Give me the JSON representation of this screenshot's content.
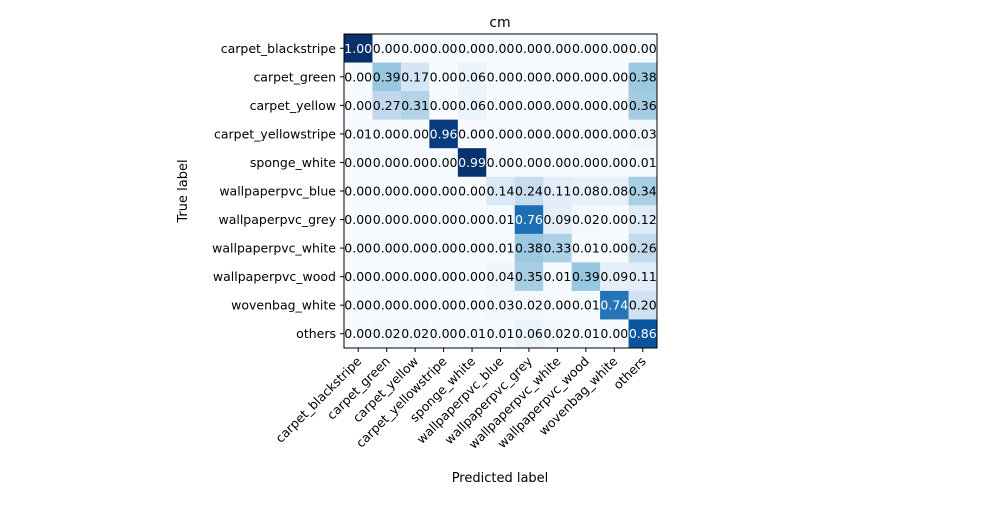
{
  "chart_data": {
    "type": "heatmap",
    "title": "cm",
    "xlabel": "Predicted label",
    "ylabel": "True label",
    "labels": [
      "carpet_blackstripe",
      "carpet_green",
      "carpet_yellow",
      "carpet_yellowstripe",
      "sponge_white",
      "wallpaperpvc_blue",
      "wallpaperpvc_grey",
      "wallpaperpvc_white",
      "wallpaperpvc_wood",
      "wovenbag_white",
      "others"
    ],
    "matrix": [
      [
        1.0,
        0.0,
        0.0,
        0.0,
        0.0,
        0.0,
        0.0,
        0.0,
        0.0,
        0.0,
        0.0
      ],
      [
        0.0,
        0.39,
        0.17,
        0.0,
        0.06,
        0.0,
        0.0,
        0.0,
        0.0,
        0.0,
        0.38
      ],
      [
        0.0,
        0.27,
        0.31,
        0.0,
        0.06,
        0.0,
        0.0,
        0.0,
        0.0,
        0.0,
        0.36
      ],
      [
        0.01,
        0.0,
        0.0,
        0.96,
        0.0,
        0.0,
        0.0,
        0.0,
        0.0,
        0.0,
        0.03
      ],
      [
        0.0,
        0.0,
        0.0,
        0.0,
        0.99,
        0.0,
        0.0,
        0.0,
        0.0,
        0.0,
        0.01
      ],
      [
        0.0,
        0.0,
        0.0,
        0.0,
        0.0,
        0.14,
        0.24,
        0.11,
        0.08,
        0.08,
        0.34
      ],
      [
        0.0,
        0.0,
        0.0,
        0.0,
        0.0,
        0.01,
        0.76,
        0.09,
        0.02,
        0.0,
        0.12
      ],
      [
        0.0,
        0.0,
        0.0,
        0.0,
        0.0,
        0.01,
        0.38,
        0.33,
        0.01,
        0.0,
        0.26
      ],
      [
        0.0,
        0.0,
        0.0,
        0.0,
        0.0,
        0.04,
        0.35,
        0.01,
        0.39,
        0.09,
        0.11
      ],
      [
        0.0,
        0.0,
        0.0,
        0.0,
        0.0,
        0.03,
        0.02,
        0.0,
        0.01,
        0.74,
        0.2
      ],
      [
        0.0,
        0.02,
        0.02,
        0.0,
        0.01,
        0.01,
        0.06,
        0.02,
        0.01,
        0.0,
        0.86
      ]
    ],
    "value_format": "2-decimal",
    "vmin": 0,
    "vmax": 1,
    "colormap": "Blues",
    "colors": {
      "low": "#f7fbff",
      "high": "#08306b",
      "text_dark": "#000000",
      "text_light": "#ffffff"
    },
    "text_threshold": 0.5,
    "grid": false
  }
}
